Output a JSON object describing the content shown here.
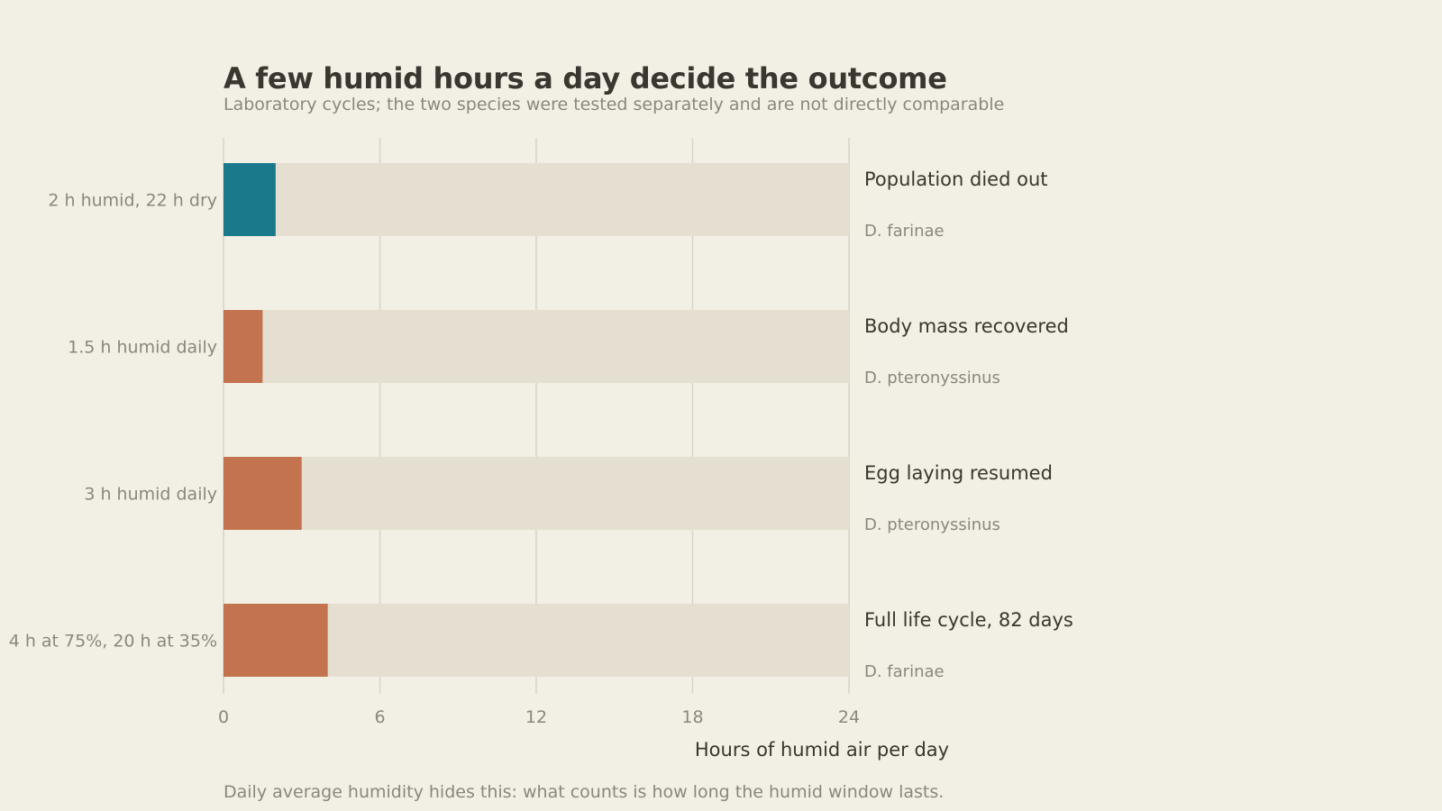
{
  "chart_data": {
    "type": "bar",
    "title": "A few humid hours a day decide the outcome",
    "subtitle": "Laboratory cycles; the two species were tested separately and are not directly comparable",
    "xlabel": "Hours of humid air per day",
    "footnote": "Daily average humidity hides this: what counts is how long the humid window lasts.",
    "xlim": [
      0,
      24
    ],
    "xticks": [
      0,
      6,
      12,
      18,
      24
    ],
    "grid": true,
    "orientation": "horizontal",
    "background_value": 24,
    "categories": [
      "2 h humid, 22 h dry",
      "1.5 h humid daily",
      "3 h humid daily",
      "4 h at 75%, 20 h at 35%"
    ],
    "values": [
      2,
      1.5,
      3,
      4
    ],
    "outcomes": [
      "Population died out",
      "Body mass recovered",
      "Egg laying resumed",
      "Full life cycle, 82 days"
    ],
    "species": [
      "D. farinae",
      "D. pteronyssinus",
      "D. pteronyssinus",
      "D. farinae"
    ],
    "bar_colors": [
      "#1a7a8c",
      "#c4734f",
      "#c4734f",
      "#c4734f"
    ],
    "track_color": "#e4dfd0",
    "grid_color": "#d8d4c8"
  }
}
